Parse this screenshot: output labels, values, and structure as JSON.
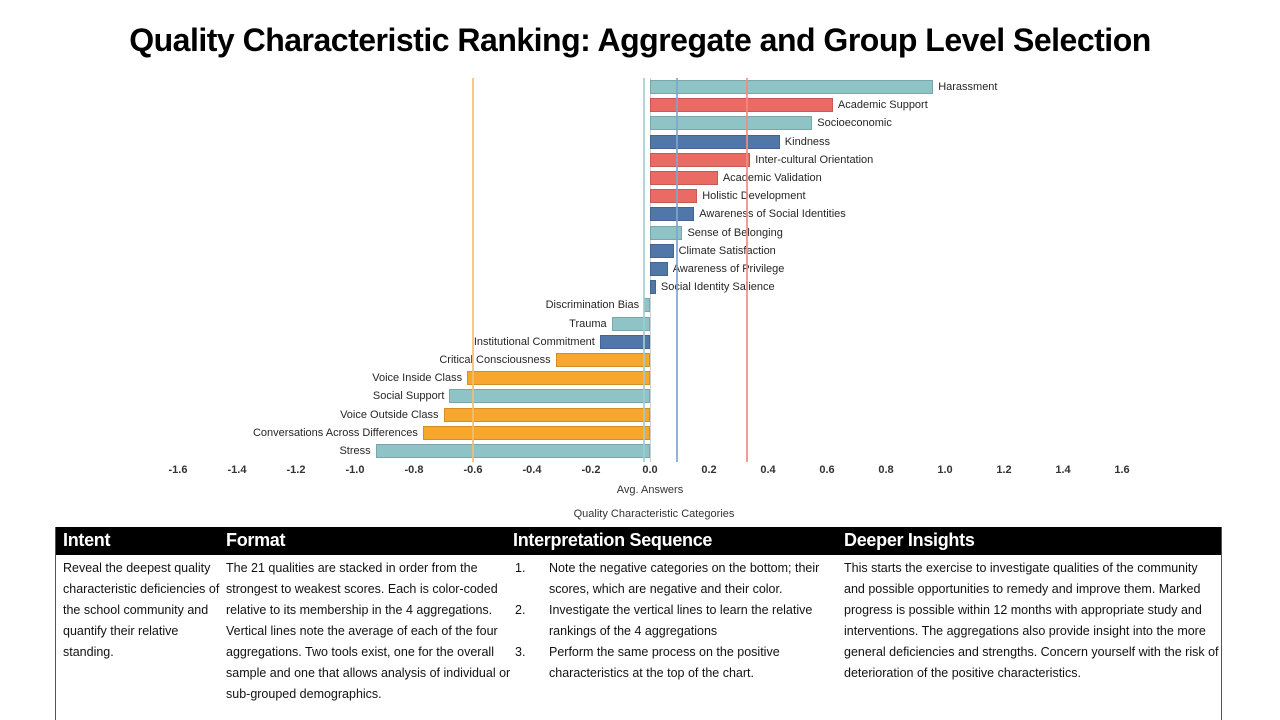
{
  "title": "Quality Characteristic Ranking: Aggregate and Group Level Selection",
  "chart_data": {
    "type": "bar",
    "orientation": "horizontal",
    "xlabel": "Avg. Answers",
    "footer_label": "Quality Characteristic Categories",
    "xlim": [
      -1.6,
      1.6
    ],
    "x_ticks": [
      "-1.6",
      "-1.4",
      "-1.2",
      "-1.0",
      "-0.8",
      "-0.6",
      "-0.4",
      "-0.2",
      "0.0",
      "0.2",
      "0.4",
      "0.6",
      "0.8",
      "1.0",
      "1.2",
      "1.4",
      "1.6"
    ],
    "grid": false,
    "legend": "none",
    "group_colors": {
      "teal": "#8FC4C7",
      "red": "#E96B64",
      "blue": "#5177A9",
      "orange": "#F7A72E"
    },
    "avg_line_colors": {
      "teal": "#9FCDD0",
      "red": "#F08C84",
      "blue": "#7FA5D2",
      "orange": "#F5BE6B"
    },
    "bars": [
      {
        "label": "Harassment",
        "value": 0.96,
        "group": "teal"
      },
      {
        "label": "Academic Support",
        "value": 0.62,
        "group": "red"
      },
      {
        "label": "Socioeconomic",
        "value": 0.55,
        "group": "teal"
      },
      {
        "label": "Kindness",
        "value": 0.44,
        "group": "blue"
      },
      {
        "label": "Inter-cultural Orientation",
        "value": 0.34,
        "group": "red"
      },
      {
        "label": "Academic Validation",
        "value": 0.23,
        "group": "red"
      },
      {
        "label": "Holistic Development",
        "value": 0.16,
        "group": "red"
      },
      {
        "label": "Awareness of Social Identities",
        "value": 0.15,
        "group": "blue"
      },
      {
        "label": "Sense of Belonging",
        "value": 0.11,
        "group": "teal"
      },
      {
        "label": "Climate Satisfaction",
        "value": 0.08,
        "group": "blue"
      },
      {
        "label": "Awareness of Privilege",
        "value": 0.06,
        "group": "blue"
      },
      {
        "label": "Social Identity Salience",
        "value": 0.02,
        "group": "blue"
      },
      {
        "label": "Discrimination Bias",
        "value": -0.02,
        "group": "teal"
      },
      {
        "label": "Trauma",
        "value": -0.13,
        "group": "teal"
      },
      {
        "label": "Institutional Commitment",
        "value": -0.17,
        "group": "blue"
      },
      {
        "label": "Critical Consciousness",
        "value": -0.32,
        "group": "orange"
      },
      {
        "label": "Voice Inside Class",
        "value": -0.62,
        "group": "orange"
      },
      {
        "label": "Social Support",
        "value": -0.68,
        "group": "teal"
      },
      {
        "label": "Voice Outside Class",
        "value": -0.7,
        "group": "orange"
      },
      {
        "label": "Conversations Across Differences",
        "value": -0.77,
        "group": "orange"
      },
      {
        "label": "Stress",
        "value": -0.93,
        "group": "teal"
      }
    ],
    "avg_lines": [
      {
        "group": "orange",
        "value": -0.6
      },
      {
        "group": "teal",
        "value": -0.02
      },
      {
        "group": "blue",
        "value": 0.09
      },
      {
        "group": "red",
        "value": 0.33
      }
    ]
  },
  "table": {
    "columns": [
      {
        "header": "Intent",
        "text": "Reveal the deepest quality characteristic deficiencies of the school community and quantify their relative standing."
      },
      {
        "header": "Format",
        "text": "The 21 qualities are stacked in order from the strongest to weakest scores. Each is color-coded relative to its membership in the 4 aggregations.  Vertical lines note the average of each of the four aggregations. Two tools exist, one for the overall sample and one that allows analysis of individual or sub-grouped demographics."
      },
      {
        "header": "Interpretation Sequence",
        "list": [
          "Note the negative categories on the bottom; their scores, which are negative and their color.",
          "Investigate the vertical lines to learn the relative rankings of the 4 aggregations",
          "Perform the same process on the positive characteristics at the top of the chart."
        ]
      },
      {
        "header": "Deeper Insights",
        "text": "This starts the exercise to investigate qualities of the community and possible opportunities to remedy and improve them.  Marked progress is possible within 12 months with appropriate study and interventions.  The aggregations also provide insight into the more general deficiencies and strengths. Concern yourself with the risk of deterioration of the positive characteristics."
      }
    ]
  }
}
